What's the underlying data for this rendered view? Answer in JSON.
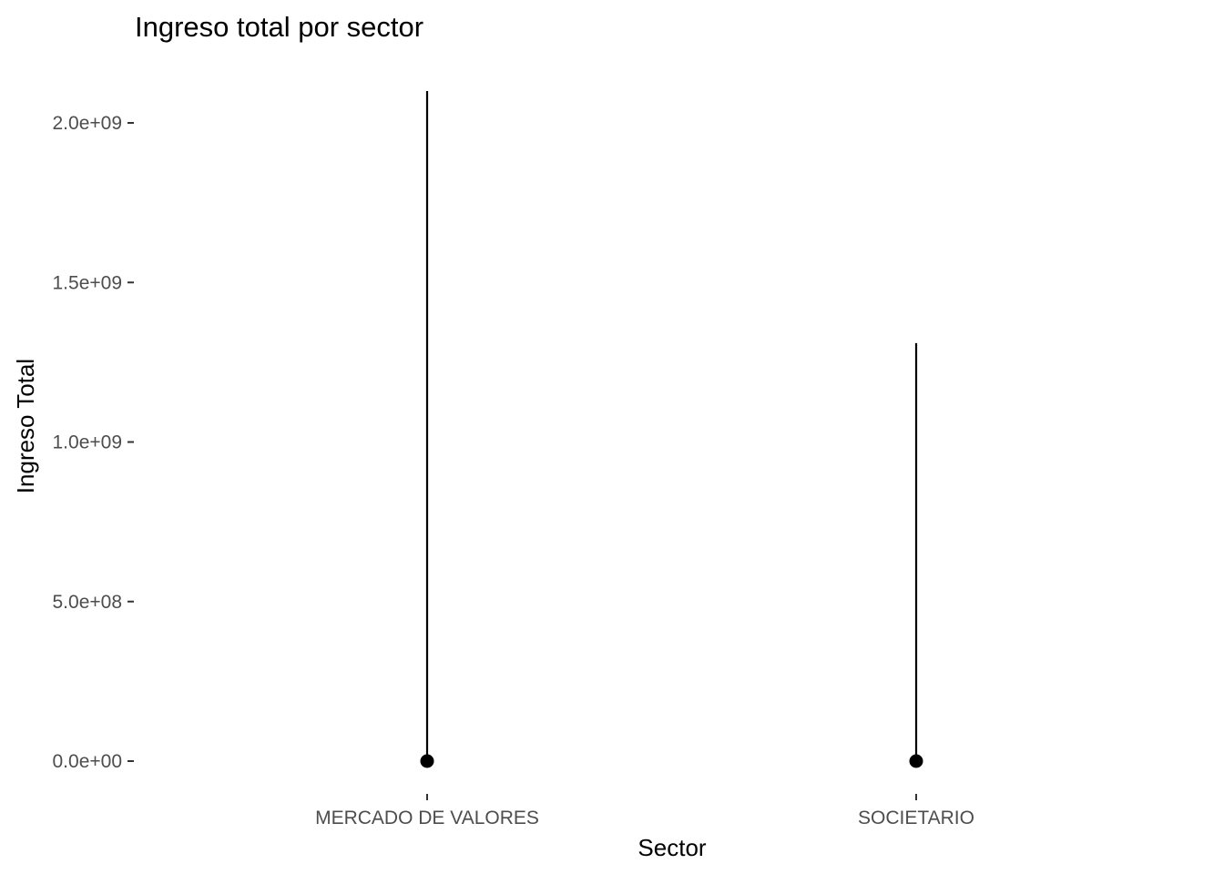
{
  "chart_data": {
    "type": "lollipop",
    "title": "Ingreso total por sector",
    "xlabel": "Sector",
    "ylabel": "Ingreso Total",
    "categories": [
      "MERCADO DE VALORES",
      "SOCIETARIO"
    ],
    "values": [
      0,
      0
    ],
    "segment_end": [
      2100000000,
      1310000000
    ],
    "ylim": [
      -100000000,
      2100000000
    ],
    "y_ticks": [
      0,
      500000000,
      1000000000,
      1500000000,
      2000000000
    ],
    "y_tick_labels": [
      "0.0e+00",
      "5.0e+08",
      "1.0e+09",
      "1.5e+09",
      "2.0e+09"
    ],
    "grid": false,
    "legend": "none",
    "colors": {
      "mark": "#000000",
      "tick_text": "#4d4d4d",
      "axis_text": "#000000"
    }
  }
}
